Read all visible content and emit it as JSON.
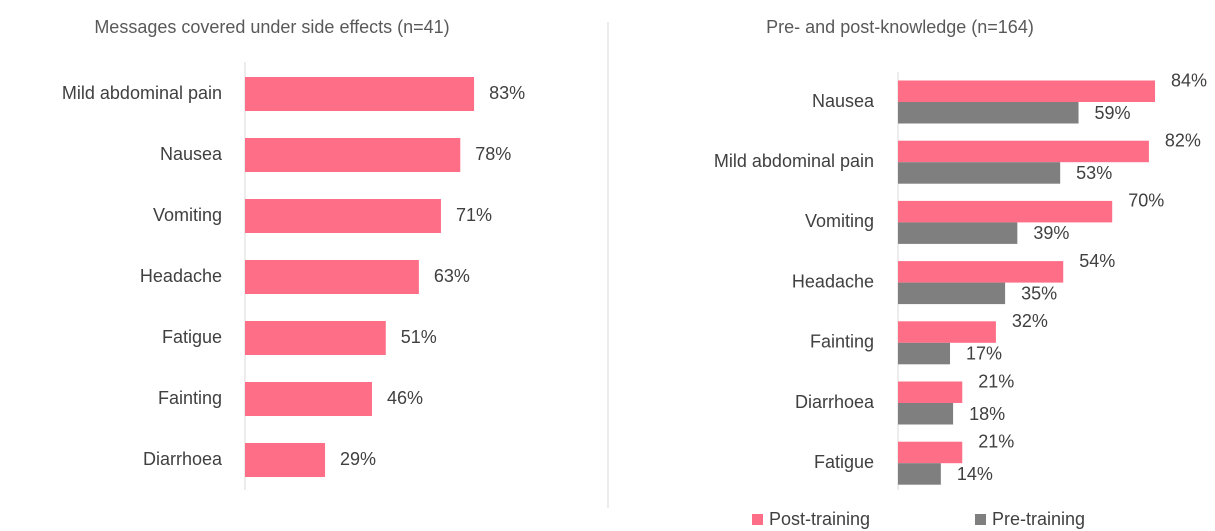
{
  "chart_data": [
    {
      "type": "bar",
      "title": "Messages covered under side effects (n=41)",
      "categories": [
        "Mild abdominal pain",
        "Nausea",
        "Vomiting",
        "Headache",
        "Fatigue",
        "Fainting",
        "Diarrhoea"
      ],
      "values": [
        83,
        78,
        71,
        63,
        51,
        46,
        29
      ],
      "value_labels": [
        "83%",
        "78%",
        "71%",
        "63%",
        "51%",
        "46%",
        "29%"
      ],
      "color": "#ff6e87"
    },
    {
      "type": "grouped_bar",
      "title": "Pre- and post-knowledge (n=164)",
      "categories": [
        "Nausea",
        "Mild abdominal pain",
        "Vomiting",
        "Headache",
        "Fainting",
        "Diarrhoea",
        "Fatigue"
      ],
      "series": [
        {
          "name": "Post-training",
          "color": "#ff6e87",
          "values": [
            84,
            82,
            70,
            54,
            32,
            21,
            21
          ],
          "value_labels": [
            "84%",
            "82%",
            "70%",
            "54%",
            "32%",
            "21%",
            "21%"
          ]
        },
        {
          "name": "Pre-training",
          "color": "#7f7f7f",
          "values": [
            59,
            53,
            39,
            35,
            17,
            18,
            14
          ],
          "value_labels": [
            "59%",
            "53%",
            "39%",
            "35%",
            "17%",
            "18%",
            "14%"
          ]
        }
      ],
      "legend": "bottom"
    }
  ]
}
